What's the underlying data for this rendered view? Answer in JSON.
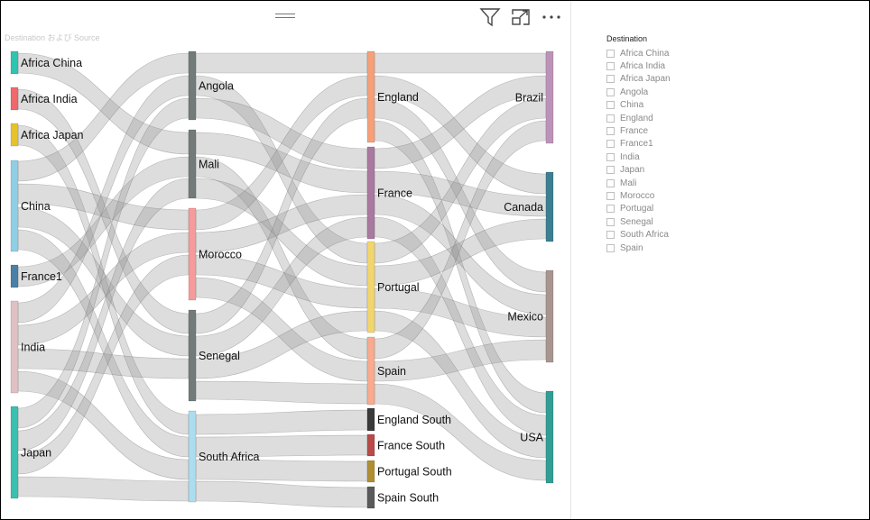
{
  "visual": {
    "title": "Destination および Source",
    "icons": {
      "filter": "filter-icon",
      "focus": "focus-mode-icon",
      "more": "more-options-icon"
    }
  },
  "chart_data": {
    "type": "sankey",
    "columns": [
      [
        "Africa China",
        "Africa India",
        "Africa Japan",
        "China",
        "France1",
        "India",
        "Japan"
      ],
      [
        "Angola",
        "Mali",
        "Morocco",
        "Senegal",
        "South Africa"
      ],
      [
        "England",
        "France",
        "Portugal",
        "Spain",
        "England South",
        "France South",
        "Portugal South",
        "Spain South"
      ],
      [
        "Brazil",
        "Canada",
        "Mexico",
        "USA"
      ]
    ],
    "node_colors": {
      "Africa China": "#2ec4b2",
      "Africa India": "#f1676b",
      "Africa Japan": "#e6c32a",
      "China": "#8ecfe6",
      "France1": "#4a80a6",
      "India": "#e0c0c3",
      "Japan": "#39c0b0",
      "Angola": "#737a7a",
      "Mali": "#737a7a",
      "Morocco": "#f79a9a",
      "Senegal": "#737a7a",
      "South Africa": "#a9ddef",
      "England": "#f6a07a",
      "France": "#a9799f",
      "Portugal": "#f3d56e",
      "Spain": "#f8ab8f",
      "England South": "#3a3a3a",
      "France South": "#b84a4a",
      "Portugal South": "#b08f33",
      "Spain South": "#5a5a5a",
      "Brazil": "#bc93b8",
      "Canada": "#3c7e92",
      "Mexico": "#a9958f",
      "USA": "#329d94"
    }
  },
  "slicer": {
    "title": "Destination",
    "items": [
      "Africa China",
      "Africa India",
      "Africa Japan",
      "Angola",
      "China",
      "England",
      "France",
      "France1",
      "India",
      "Japan",
      "Mali",
      "Morocco",
      "Portugal",
      "Senegal",
      "South Africa",
      "Spain"
    ]
  }
}
